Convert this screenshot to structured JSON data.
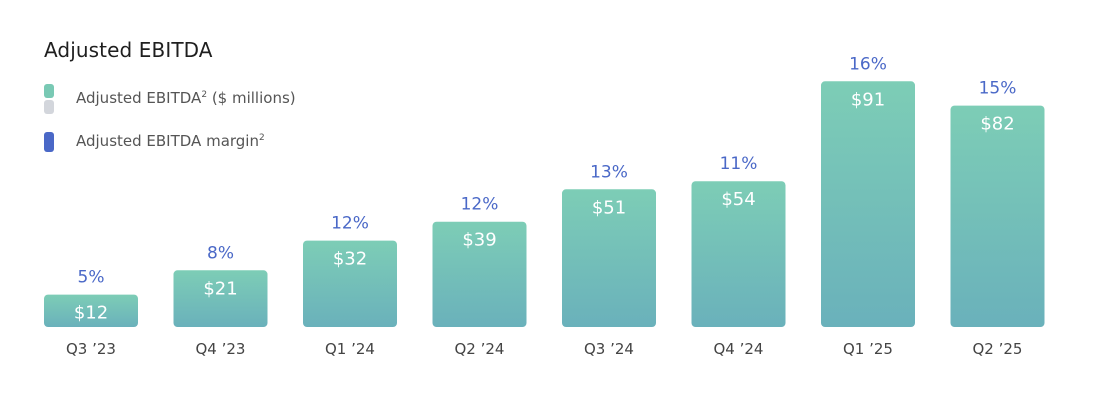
{
  "chart_data": {
    "type": "bar",
    "title": "Adjusted EBITDA",
    "categories": [
      "Q3 ’23",
      "Q4 ’23",
      "Q1 ’24",
      "Q2 ’24",
      "Q3 ’24",
      "Q4 ’24",
      "Q1 ’25",
      "Q2 ’25"
    ],
    "series": [
      {
        "name": "Adjusted EBITDA² ($ millions)",
        "values": [
          12,
          21,
          32,
          39,
          51,
          54,
          91,
          82
        ],
        "labels": [
          "$12",
          "$21",
          "$32",
          "$39",
          "$51",
          "$54",
          "$91",
          "$82"
        ]
      },
      {
        "name": "Adjusted EBITDA margin²",
        "values": [
          5,
          8,
          12,
          12,
          13,
          11,
          16,
          15
        ],
        "labels": [
          "5%",
          "8%",
          "12%",
          "12%",
          "13%",
          "11%",
          "16%",
          "15%"
        ]
      }
    ],
    "ylim": [
      0,
      91
    ],
    "grid": false,
    "legend_position": "top-left",
    "colors": {
      "bar_top": "#7dcdb6",
      "bar_bottom": "#6ab1bb",
      "margin_text": "#4a68c7",
      "legend_swatch_grey": "#d3d6dc"
    }
  },
  "legend": {
    "ebitda_text": "Adjusted EBITDA",
    "ebitda_sup": "2",
    "ebitda_unit": " ($ millions)",
    "margin_text": "Adjusted EBITDA margin",
    "margin_sup": "2"
  }
}
